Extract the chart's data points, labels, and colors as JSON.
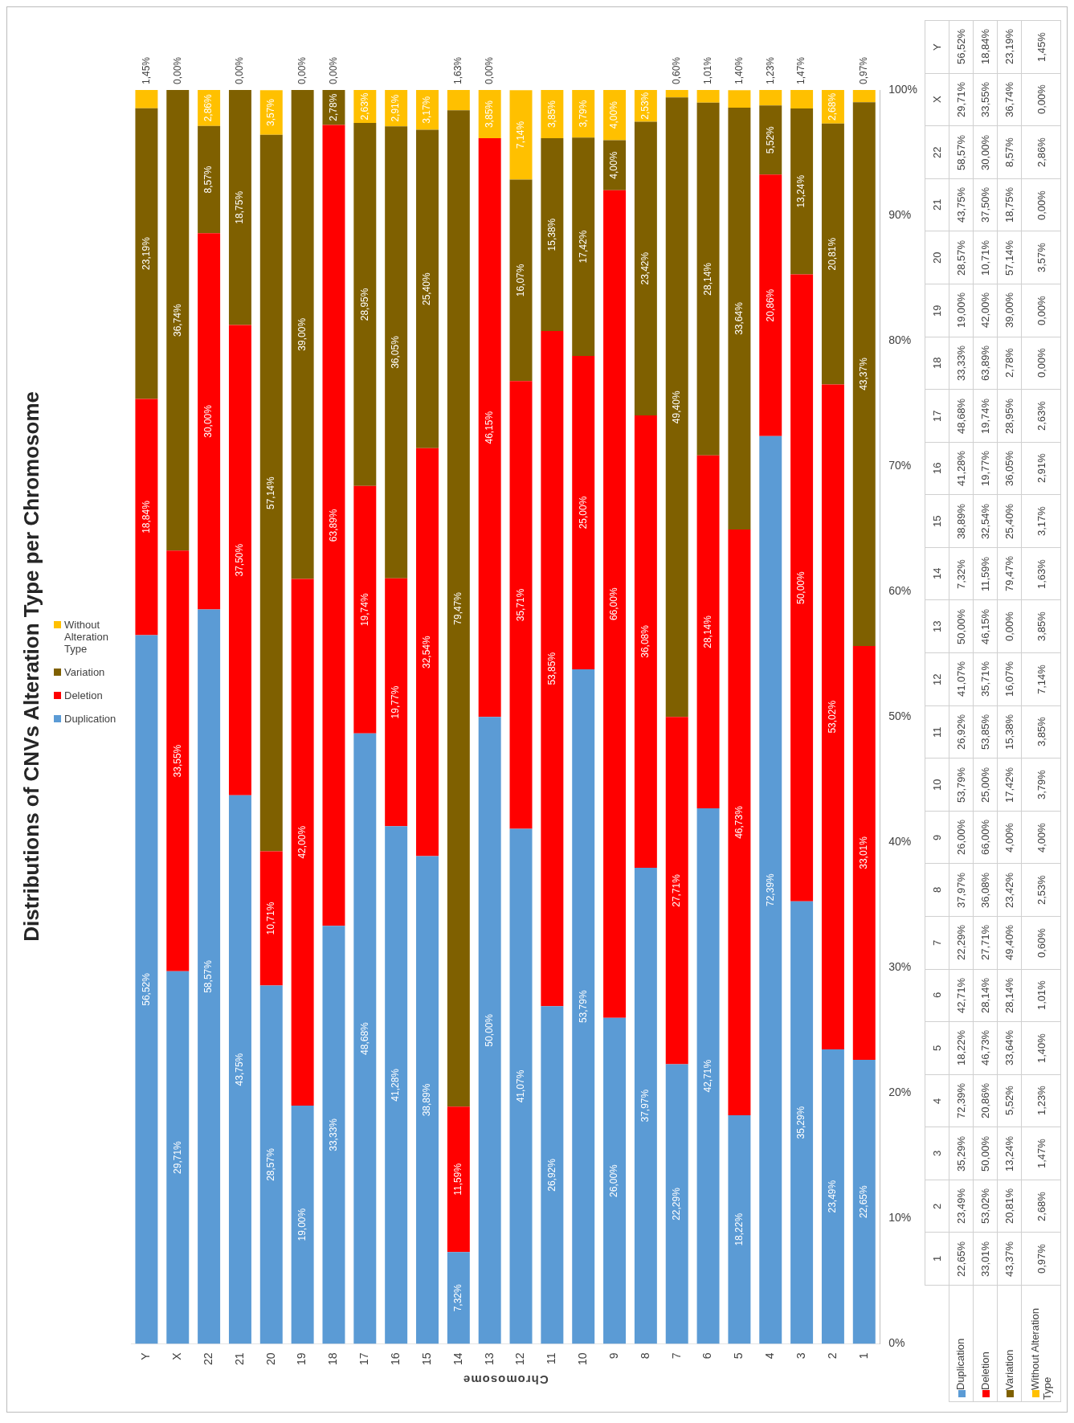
{
  "chart_data": {
    "type": "bar",
    "title": "Distributions of CNVs Alteration Type per Chromosome",
    "xlabel": "Chromosome",
    "stacked": true,
    "legend": "left",
    "grid": false,
    "categories": [
      "Y",
      "X",
      "22",
      "21",
      "20",
      "19",
      "18",
      "17",
      "16",
      "15",
      "14",
      "13",
      "12",
      "11",
      "10",
      "9",
      "8",
      "7",
      "6",
      "5",
      "4",
      "3",
      "2",
      "1"
    ],
    "ylim": [
      0,
      100
    ],
    "yticks": [
      {
        "value": 0,
        "label": "0%"
      },
      {
        "value": 10,
        "label": "10%"
      },
      {
        "value": 20,
        "label": "20%"
      },
      {
        "value": 30,
        "label": "30%"
      },
      {
        "value": 40,
        "label": "40%"
      },
      {
        "value": 50,
        "label": "50%"
      },
      {
        "value": 60,
        "label": "60%"
      },
      {
        "value": 70,
        "label": "70%"
      },
      {
        "value": 80,
        "label": "80%"
      },
      {
        "value": 90,
        "label": "90%"
      },
      {
        "value": 100,
        "label": "100%"
      }
    ],
    "series": [
      {
        "name": "Duplication",
        "color": "#5b9bd5",
        "values": [
          56.52,
          29.71,
          58.57,
          43.75,
          28.57,
          19.0,
          33.33,
          48.68,
          41.28,
          38.89,
          7.32,
          50.0,
          41.07,
          26.92,
          53.79,
          26.0,
          37.97,
          22.29,
          42.71,
          18.22,
          72.39,
          35.29,
          23.49,
          22.65
        ],
        "value_labels": [
          "56,52%",
          "29,71%",
          "58,57%",
          "43,75%",
          "28,57%",
          "19,00%",
          "33,33%",
          "48,68%",
          "41,28%",
          "38,89%",
          "7,32%",
          "50,00%",
          "41,07%",
          "26,92%",
          "53,79%",
          "26,00%",
          "37,97%",
          "22,29%",
          "42,71%",
          "18,22%",
          "72,39%",
          "35,29%",
          "23,49%",
          "22,65%"
        ]
      },
      {
        "name": "Deletion",
        "color": "#ff0000",
        "values": [
          18.84,
          33.55,
          30.0,
          37.5,
          10.71,
          42.0,
          63.89,
          19.74,
          19.77,
          32.54,
          11.59,
          46.15,
          35.71,
          53.85,
          25.0,
          66.0,
          36.08,
          27.71,
          28.14,
          46.73,
          20.86,
          50.0,
          53.02,
          33.01
        ],
        "value_labels": [
          "18,84%",
          "33,55%",
          "30,00%",
          "37,50%",
          "10,71%",
          "42,00%",
          "63,89%",
          "19,74%",
          "19,77%",
          "32,54%",
          "11,59%",
          "46,15%",
          "35,71%",
          "53,85%",
          "25,00%",
          "66,00%",
          "36,08%",
          "27,71%",
          "28,14%",
          "46,73%",
          "20,86%",
          "50,00%",
          "53,02%",
          "33,01%"
        ]
      },
      {
        "name": "Variation",
        "color": "#7f6000",
        "values": [
          23.19,
          36.74,
          8.57,
          18.75,
          57.14,
          39.0,
          2.78,
          28.95,
          36.05,
          25.4,
          79.47,
          0.0,
          16.07,
          15.38,
          17.42,
          4.0,
          23.42,
          49.4,
          28.14,
          33.64,
          5.52,
          13.24,
          20.81,
          43.37
        ],
        "value_labels": [
          "23,19%",
          "36,74%",
          "8,57%",
          "18,75%",
          "57,14%",
          "39,00%",
          "2,78%",
          "28,95%",
          "36,05%",
          "25,40%",
          "79,47%",
          "0,00%",
          "16,07%",
          "15,38%",
          "17,42%",
          "4,00%",
          "23,42%",
          "49,40%",
          "28,14%",
          "33,64%",
          "5,52%",
          "13,24%",
          "20,81%",
          "43,37%"
        ]
      },
      {
        "name": "Without Alteration Type",
        "color": "#ffc000",
        "values": [
          1.45,
          0.0,
          2.86,
          0.0,
          3.57,
          0.0,
          0.0,
          2.63,
          2.91,
          3.17,
          1.63,
          3.85,
          7.14,
          3.85,
          3.79,
          4.0,
          2.53,
          0.6,
          1.01,
          1.4,
          1.23,
          1.47,
          2.68,
          0.97
        ],
        "value_labels": [
          "1,45%",
          "0,00%",
          "2,86%",
          "0,00%",
          "3,57%",
          "0,00%",
          "0,00%",
          "2,63%",
          "2,91%",
          "3,17%",
          "1,63%",
          "3,85%",
          "7,14%",
          "3,85%",
          "3,79%",
          "4,00%",
          "2,53%",
          "0,60%",
          "1,01%",
          "1,40%",
          "1,23%",
          "1,47%",
          "2,68%",
          "0,97%"
        ]
      }
    ]
  }
}
